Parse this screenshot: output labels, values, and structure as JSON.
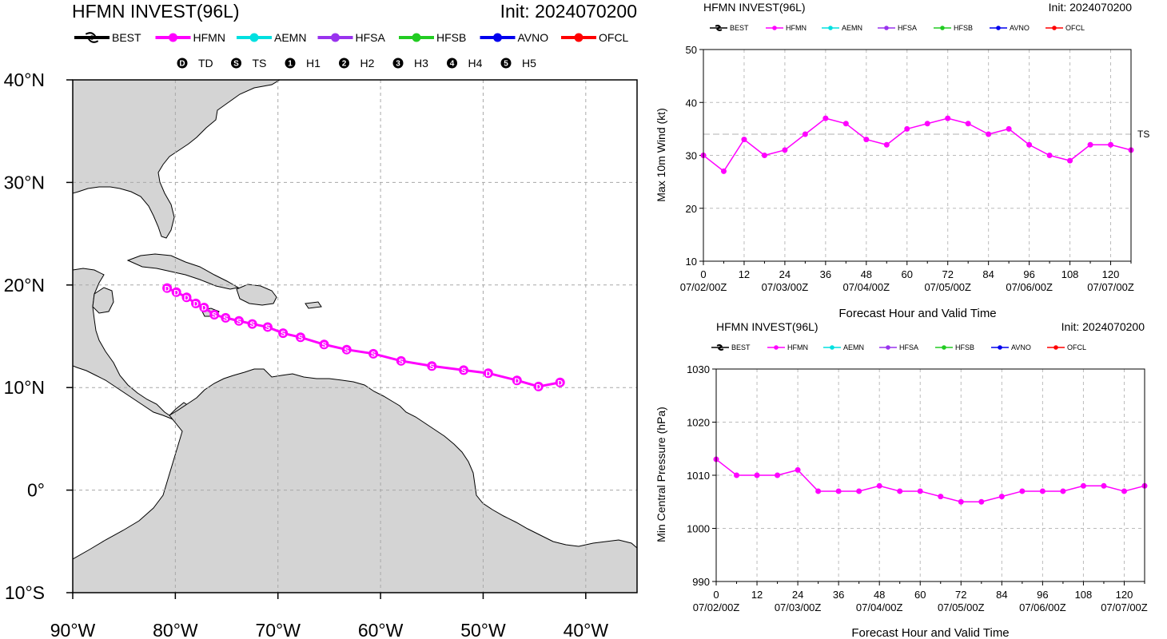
{
  "colors": {
    "BEST": "#000000",
    "HFMN": "#ff00ff",
    "AEMN": "#00e0e0",
    "HFSA": "#9933ee",
    "HFSB": "#22cc22",
    "AVNO": "#0000ee",
    "OFCL": "#ff0000",
    "land": "#d4d4d4",
    "coast": "#000000",
    "grid": "#a8a8a8"
  },
  "legend": {
    "models": [
      "BEST",
      "HFMN",
      "AEMN",
      "HFSA",
      "HFSB",
      "AVNO",
      "OFCL"
    ],
    "intensity": [
      {
        "symbol": "D",
        "label": "TD"
      },
      {
        "symbol": "S",
        "label": "TS"
      },
      {
        "symbol": "1",
        "label": "H1"
      },
      {
        "symbol": "2",
        "label": "H2"
      },
      {
        "symbol": "3",
        "label": "H3"
      },
      {
        "symbol": "4",
        "label": "H4"
      },
      {
        "symbol": "5",
        "label": "H5"
      }
    ]
  },
  "chart_data": [
    {
      "type": "scatter",
      "kind": "track-map",
      "title": "HFMN INVEST(96L)",
      "init_label": "Init: 2024070200",
      "lon_ticks": [
        "90°W",
        "80°W",
        "70°W",
        "60°W",
        "50°W",
        "40°W"
      ],
      "lat_ticks": [
        "40°N",
        "30°N",
        "20°N",
        "10°N",
        "0°",
        "10°S"
      ],
      "xlim_lon": [
        -90,
        -35
      ],
      "ylim_lat": [
        -10,
        40
      ],
      "grid": true,
      "series": [
        {
          "name": "HFMN",
          "points": [
            {
              "lon": -80.8,
              "lat": 19.7,
              "cat": "D"
            },
            {
              "lon": -79.9,
              "lat": 19.3,
              "cat": "D"
            },
            {
              "lon": -78.9,
              "lat": 18.8,
              "cat": "D"
            },
            {
              "lon": -78.0,
              "lat": 18.2,
              "cat": "D"
            },
            {
              "lon": -77.2,
              "lat": 17.8,
              "cat": "D"
            },
            {
              "lon": -76.2,
              "lat": 17.1,
              "cat": "S"
            },
            {
              "lon": -75.1,
              "lat": 16.8,
              "cat": "S"
            },
            {
              "lon": -73.8,
              "lat": 16.5,
              "cat": "S"
            },
            {
              "lon": -72.5,
              "lat": 16.2,
              "cat": "S"
            },
            {
              "lon": -71.0,
              "lat": 15.9,
              "cat": "S"
            },
            {
              "lon": -69.5,
              "lat": 15.3,
              "cat": "S"
            },
            {
              "lon": -67.8,
              "lat": 14.9,
              "cat": "S"
            },
            {
              "lon": -65.5,
              "lat": 14.2,
              "cat": "S"
            },
            {
              "lon": -63.3,
              "lat": 13.7,
              "cat": "S"
            },
            {
              "lon": -60.7,
              "lat": 13.3,
              "cat": "S"
            },
            {
              "lon": -58.0,
              "lat": 12.6,
              "cat": "S"
            },
            {
              "lon": -55.0,
              "lat": 12.1,
              "cat": "S"
            },
            {
              "lon": -51.9,
              "lat": 11.7,
              "cat": "S"
            },
            {
              "lon": -49.5,
              "lat": 11.4,
              "cat": "D"
            },
            {
              "lon": -46.7,
              "lat": 10.7,
              "cat": "D"
            },
            {
              "lon": -44.6,
              "lat": 10.1,
              "cat": "D"
            },
            {
              "lon": -42.5,
              "lat": 10.5,
              "cat": "D"
            }
          ]
        }
      ]
    },
    {
      "type": "line",
      "title": "HFMN INVEST(96L)",
      "init_label": "Init: 2024070200",
      "xlabel": "Forecast Hour and Valid Time",
      "ylabel": "Max 10m Wind (kt)",
      "xlim": [
        0,
        126
      ],
      "ylim": [
        10,
        50
      ],
      "x_ticks": [
        0,
        12,
        24,
        36,
        48,
        60,
        72,
        84,
        96,
        108,
        120
      ],
      "y_ticks": [
        10,
        20,
        30,
        40,
        50
      ],
      "date_labels": [
        {
          "hour": 0,
          "label": "07/02/00Z"
        },
        {
          "hour": 24,
          "label": "07/03/00Z"
        },
        {
          "hour": 48,
          "label": "07/04/00Z"
        },
        {
          "hour": 72,
          "label": "07/05/00Z"
        },
        {
          "hour": 96,
          "label": "07/06/00Z"
        },
        {
          "hour": 120,
          "label": "07/07/00Z"
        }
      ],
      "reference_line": {
        "value": 34,
        "label": "TS"
      },
      "grid": true,
      "x": [
        0,
        6,
        12,
        18,
        24,
        30,
        36,
        42,
        48,
        54,
        60,
        66,
        72,
        78,
        84,
        90,
        96,
        102,
        108,
        114,
        120,
        126
      ],
      "series": [
        {
          "name": "HFMN",
          "values": [
            30,
            27,
            33,
            30,
            31,
            34,
            37,
            36,
            33,
            32,
            35,
            36,
            37,
            36,
            34,
            35,
            32,
            30,
            29,
            32,
            32,
            31
          ]
        }
      ]
    },
    {
      "type": "line",
      "title": "HFMN INVEST(96L)",
      "init_label": "Init: 2024070200",
      "xlabel": "Forecast Hour and Valid Time",
      "ylabel": "Min Central Pressure (hPa)",
      "xlim": [
        0,
        126
      ],
      "ylim": [
        990,
        1030
      ],
      "x_ticks": [
        0,
        12,
        24,
        36,
        48,
        60,
        72,
        84,
        96,
        108,
        120
      ],
      "y_ticks": [
        990,
        1000,
        1010,
        1020,
        1030
      ],
      "date_labels": [
        {
          "hour": 0,
          "label": "07/02/00Z"
        },
        {
          "hour": 24,
          "label": "07/03/00Z"
        },
        {
          "hour": 48,
          "label": "07/04/00Z"
        },
        {
          "hour": 72,
          "label": "07/05/00Z"
        },
        {
          "hour": 96,
          "label": "07/06/00Z"
        },
        {
          "hour": 120,
          "label": "07/07/00Z"
        }
      ],
      "grid": true,
      "x": [
        0,
        6,
        12,
        18,
        24,
        30,
        36,
        42,
        48,
        54,
        60,
        66,
        72,
        78,
        84,
        90,
        96,
        102,
        108,
        114,
        120,
        126
      ],
      "series": [
        {
          "name": "HFMN",
          "values": [
            1013,
            1010,
            1010,
            1010,
            1011,
            1007,
            1007,
            1007,
            1008,
            1007,
            1007,
            1006,
            1005,
            1005,
            1006,
            1007,
            1007,
            1007,
            1008,
            1008,
            1007,
            1008
          ]
        }
      ]
    }
  ]
}
